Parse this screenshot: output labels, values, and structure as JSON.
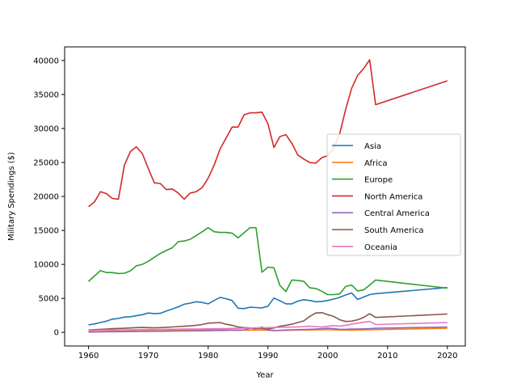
{
  "chart_data": {
    "type": "line",
    "title": "",
    "xlabel": "Year",
    "ylabel": "Military Spendings ($)",
    "xlim": [
      1956,
      2023
    ],
    "ylim": [
      -2000,
      42000
    ],
    "xticks": [
      1960,
      1970,
      1980,
      1990,
      2000,
      2010,
      2020
    ],
    "yticks": [
      0,
      5000,
      10000,
      15000,
      20000,
      25000,
      30000,
      35000,
      40000
    ],
    "grid": false,
    "legend_position": "center-right",
    "x": [
      1960,
      1961,
      1962,
      1963,
      1964,
      1965,
      1966,
      1967,
      1968,
      1969,
      1970,
      1971,
      1972,
      1973,
      1974,
      1975,
      1976,
      1977,
      1978,
      1979,
      1980,
      1981,
      1982,
      1983,
      1984,
      1985,
      1986,
      1987,
      1988,
      1989,
      1990,
      1991,
      1992,
      1993,
      1994,
      1995,
      1996,
      1997,
      1998,
      1999,
      2000,
      2001,
      2002,
      2003,
      2004,
      2005,
      2006,
      2007,
      2008,
      2020
    ],
    "series": [
      {
        "name": "Asia",
        "color": "#1f77b4",
        "values": [
          1100,
          1250,
          1450,
          1650,
          1950,
          2050,
          2250,
          2300,
          2450,
          2600,
          2850,
          2750,
          2800,
          3150,
          3450,
          3750,
          4150,
          4300,
          4500,
          4400,
          4200,
          4700,
          5150,
          4950,
          4700,
          3550,
          3500,
          3700,
          3650,
          3600,
          3850,
          5050,
          4650,
          4200,
          4200,
          4600,
          4800,
          4700,
          4500,
          4550,
          4700,
          4900,
          5150,
          5500,
          5800,
          4850,
          5200,
          5550,
          5700,
          6600
        ]
      },
      {
        "name": "Africa",
        "color": "#ff7f0e",
        "values": [
          100,
          120,
          130,
          150,
          160,
          170,
          180,
          190,
          200,
          210,
          230,
          240,
          250,
          270,
          290,
          300,
          310,
          320,
          330,
          340,
          350,
          360,
          380,
          370,
          360,
          350,
          340,
          330,
          340,
          350,
          330,
          300,
          280,
          300,
          320,
          340,
          350,
          360,
          370,
          380,
          390,
          380,
          350,
          340,
          330,
          350,
          370,
          390,
          400,
          600
        ]
      },
      {
        "name": "Europe",
        "color": "#2ca02c",
        "values": [
          7500,
          8300,
          9100,
          8800,
          8800,
          8650,
          8700,
          9050,
          9800,
          10000,
          10450,
          11050,
          11600,
          12050,
          12450,
          13350,
          13450,
          13700,
          14250,
          14800,
          15400,
          14800,
          14700,
          14700,
          14600,
          13900,
          14650,
          15400,
          15400,
          8850,
          9600,
          9500,
          6900,
          6000,
          7700,
          7650,
          7500,
          6550,
          6450,
          6050,
          5550,
          5550,
          5650,
          6750,
          6950,
          6100,
          6250,
          6950,
          7700,
          6500
        ]
      },
      {
        "name": "North America",
        "color": "#d62728",
        "values": [
          18500,
          19200,
          20700,
          20400,
          19700,
          19600,
          24600,
          26600,
          27300,
          26300,
          24100,
          22000,
          21900,
          21000,
          21100,
          20500,
          19600,
          20500,
          20700,
          21300,
          22700,
          24600,
          27000,
          28600,
          30200,
          30200,
          32000,
          32300,
          32300,
          32400,
          30700,
          27200,
          28800,
          29100,
          27800,
          26100,
          25500,
          25000,
          24900,
          25700,
          26000,
          27100,
          29200,
          32800,
          35900,
          37800,
          38800,
          40100,
          33500,
          37000
        ]
      },
      {
        "name": "Central America",
        "color": "#9467bd",
        "values": [
          50,
          60,
          70,
          80,
          90,
          100,
          110,
          120,
          130,
          140,
          150,
          160,
          170,
          180,
          190,
          200,
          210,
          220,
          230,
          240,
          250,
          260,
          280,
          300,
          320,
          300,
          350,
          600,
          500,
          800,
          350,
          250,
          300,
          350,
          380,
          400,
          420,
          450,
          500,
          550,
          600,
          550,
          450,
          450,
          480,
          500,
          520,
          550,
          600,
          800
        ]
      },
      {
        "name": "South America",
        "color": "#8c564b",
        "values": [
          350,
          400,
          450,
          500,
          550,
          580,
          600,
          650,
          700,
          720,
          700,
          680,
          700,
          750,
          800,
          850,
          900,
          950,
          1050,
          1150,
          1350,
          1400,
          1450,
          1200,
          1050,
          800,
          700,
          650,
          600,
          550,
          500,
          650,
          900,
          1050,
          1200,
          1450,
          1700,
          2350,
          2850,
          2900,
          2600,
          2350,
          1850,
          1600,
          1650,
          1850,
          2200,
          2750,
          2200,
          2700
        ]
      },
      {
        "name": "Oceania",
        "color": "#e377c2",
        "values": [
          300,
          320,
          340,
          350,
          360,
          370,
          380,
          390,
          400,
          410,
          420,
          430,
          440,
          450,
          460,
          470,
          480,
          490,
          500,
          510,
          520,
          530,
          540,
          560,
          580,
          600,
          620,
          640,
          660,
          680,
          700,
          720,
          740,
          760,
          780,
          800,
          850,
          900,
          850,
          800,
          900,
          1000,
          900,
          1050,
          1200,
          1350,
          1500,
          1600,
          1150,
          1450
        ]
      }
    ]
  }
}
